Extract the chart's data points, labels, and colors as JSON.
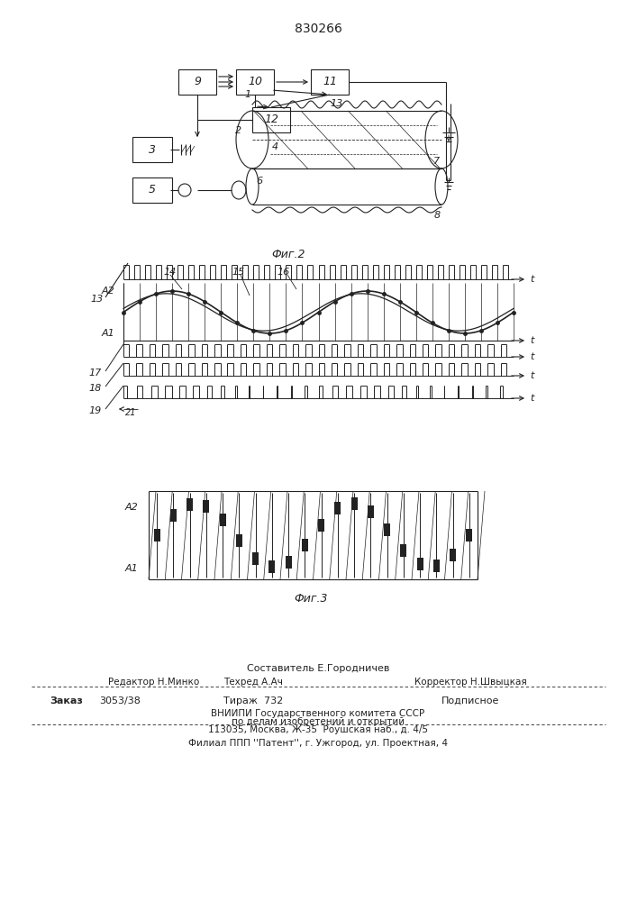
{
  "patent_number": "830266",
  "fig2_label": "Фиг.2",
  "fig3_label": "Фиг.3",
  "bg_color": "#ffffff",
  "line_color": "#222222",
  "footer": {
    "sestavitel": "Составитель Е.Городничев",
    "redaktor": "Редактор Н.Минко",
    "tehred": "Техред А.Ач",
    "korrektor": "Корректор Н.Швыцкая",
    "zakaz": "Заказ 3053/38",
    "tirazh": "Тираж 732",
    "podpisnoe": "Подписное",
    "vniipи": "ВНИИПИ Государственного комитета СССР",
    "po_delam": "по делам изобретений и открытий",
    "address": "113035, Москва, Ж-35  Роушская наб., д. 4/5",
    "filial": "Филиал ППП ''Патент'', г. Ужгород, ул. Проектная, 4"
  }
}
